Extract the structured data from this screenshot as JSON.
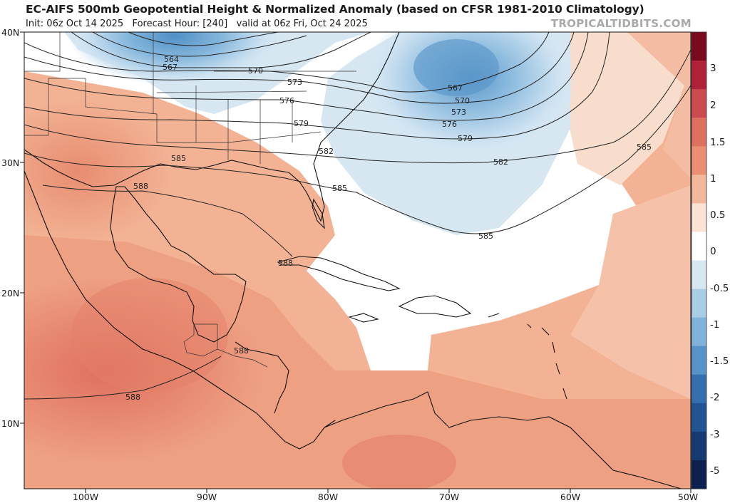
{
  "header": {
    "title": "EC-AIFS 500mb Geopotential Height & Normalized Anomaly (based on CFSR 1981-2010 Climatology)",
    "subtitle": "Init: 06z Oct 14 2025   Forecast Hour: [240]   valid at 06z Fri, Oct 24 2025",
    "watermark": "TROPICALTIDBITS.COM"
  },
  "axes": {
    "lat_labels": [
      "40N",
      "30N",
      "20N",
      "10N"
    ],
    "lon_labels": [
      "100W",
      "90W",
      "80W",
      "70W",
      "60W",
      "50W"
    ]
  },
  "contour_labels": [
    "564",
    "567",
    "570",
    "573",
    "576",
    "579",
    "582",
    "585",
    "588"
  ],
  "colorbar": {
    "labels": [
      "3",
      "2",
      "1.5",
      "1",
      "0.5",
      "0",
      "-0.5",
      "-1",
      "-1.5",
      "-2",
      "-3",
      "-5"
    ],
    "colors": [
      "#7a0a1e",
      "#b0213a",
      "#cc4b50",
      "#de7060",
      "#ea8f72",
      "#f3b79b",
      "#fbe2d4",
      "#ffffff",
      "#d6e7f2",
      "#aacde6",
      "#7fb3d9",
      "#5593c8",
      "#346fb0",
      "#225494",
      "#163a72",
      "#0d2150"
    ]
  }
}
